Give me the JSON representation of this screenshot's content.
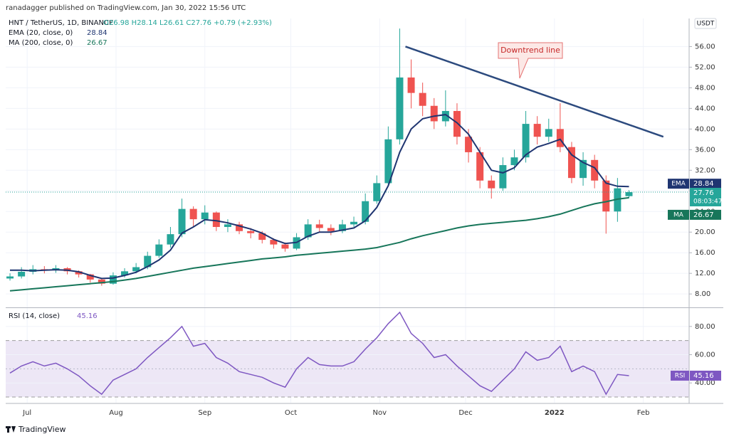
{
  "header": {
    "published": "ranadagger published on TradingView.com, Jan 30, 2022 15:56 UTC"
  },
  "footer": {
    "brand": "TradingView"
  },
  "chart_data": [
    {
      "type": "candlestick",
      "title": "HNT / TetherUS, 1D, BINANCE",
      "ohlc_text": "O26.98 H28.14 L26.61 C27.76 +0.79 (+2.93%)",
      "currency": "USDT",
      "countdown": "08:03:47",
      "up_color": "#26a69a",
      "down_color": "#ef5350",
      "x": [
        -6,
        -2,
        2,
        6,
        10,
        14,
        18,
        22,
        26,
        30,
        34,
        38,
        42,
        46,
        50,
        54,
        58,
        62,
        66,
        70,
        74,
        78,
        82,
        86,
        90,
        94,
        98,
        102,
        106,
        110,
        114,
        118,
        122,
        126,
        130,
        134,
        138,
        142,
        146,
        150,
        154,
        158,
        162,
        166,
        170,
        174,
        178,
        182,
        186,
        190,
        194,
        198,
        202,
        206,
        210
      ],
      "open": [
        11.0,
        11.4,
        12.3,
        12.8,
        12.6,
        13.0,
        12.4,
        11.8,
        10.8,
        10.0,
        11.6,
        12.4,
        13.2,
        15.4,
        17.6,
        19.6,
        24.5,
        22.5,
        23.8,
        21.0,
        21.5,
        20.2,
        19.8,
        18.5,
        17.6,
        16.8,
        19.0,
        21.5,
        20.8,
        20.2,
        21.5,
        22.0,
        26.0,
        29.5,
        38.0,
        50.0,
        47.0,
        44.5,
        41.5,
        43.5,
        38.5,
        35.5,
        30.0,
        28.5,
        33.0,
        34.5,
        41.0,
        38.5,
        40.0,
        36.5,
        30.5,
        34.0,
        30.0,
        24.0,
        26.98
      ],
      "high": [
        12.0,
        13.2,
        13.6,
        13.4,
        13.6,
        13.2,
        12.6,
        11.9,
        11.0,
        12.2,
        13.0,
        14.0,
        16.2,
        18.6,
        21.0,
        26.5,
        25.0,
        25.2,
        24.0,
        22.5,
        22.0,
        20.8,
        20.2,
        18.8,
        18.0,
        19.8,
        22.5,
        22.4,
        21.5,
        22.4,
        23.0,
        27.5,
        31.0,
        40.5,
        59.5,
        53.5,
        49.0,
        46.0,
        47.5,
        45.0,
        40.0,
        36.5,
        31.0,
        34.5,
        36.0,
        43.5,
        42.5,
        42.0,
        45.0,
        37.5,
        35.5,
        35.0,
        31.0,
        30.5,
        28.14
      ],
      "low": [
        10.6,
        11.0,
        11.8,
        12.0,
        12.1,
        11.8,
        11.2,
        10.2,
        9.6,
        9.8,
        11.2,
        12.0,
        12.8,
        15.0,
        17.0,
        19.0,
        21.0,
        21.5,
        20.2,
        20.0,
        19.6,
        18.8,
        17.8,
        16.8,
        16.2,
        16.5,
        18.5,
        20.0,
        19.4,
        19.8,
        21.0,
        21.5,
        25.5,
        29.0,
        37.0,
        44.0,
        42.5,
        40.0,
        40.5,
        37.0,
        33.5,
        28.5,
        26.5,
        28.0,
        32.0,
        33.5,
        37.0,
        37.5,
        35.5,
        29.5,
        29.0,
        28.5,
        19.7,
        22.0,
        26.61
      ],
      "close": [
        11.4,
        12.3,
        12.8,
        12.6,
        13.0,
        12.4,
        11.8,
        10.8,
        10.0,
        11.6,
        12.4,
        13.2,
        15.4,
        17.6,
        19.6,
        24.5,
        22.5,
        23.8,
        21.0,
        21.5,
        20.2,
        19.8,
        18.5,
        17.6,
        16.8,
        19.0,
        21.5,
        20.8,
        20.2,
        21.5,
        22.0,
        26.0,
        29.5,
        38.0,
        50.0,
        47.0,
        44.5,
        41.5,
        43.5,
        38.5,
        35.5,
        30.0,
        28.5,
        33.0,
        34.5,
        41.0,
        38.5,
        40.0,
        36.5,
        30.5,
        34.0,
        30.0,
        24.0,
        28.5,
        27.76
      ],
      "series": [
        {
          "name": "EMA (20, close, 0)",
          "badge": "EMA",
          "color": "#1f3571",
          "values": [
            12.6,
            12.6,
            12.5,
            12.6,
            12.7,
            12.6,
            12.3,
            11.6,
            11.0,
            11.1,
            11.6,
            12.2,
            13.3,
            14.6,
            16.5,
            19.8,
            21.0,
            22.4,
            22.2,
            21.8,
            21.2,
            20.6,
            19.8,
            18.6,
            17.8,
            18.0,
            19.2,
            20.0,
            20.0,
            20.4,
            20.8,
            22.2,
            24.8,
            29.0,
            35.5,
            40.0,
            42.0,
            42.5,
            42.8,
            41.2,
            39.0,
            35.5,
            32.0,
            31.5,
            32.5,
            35.0,
            36.5,
            37.2,
            38.0,
            35.0,
            33.5,
            32.5,
            29.5,
            28.9,
            28.84
          ]
        },
        {
          "name": "MA (200, close, 0)",
          "badge": "MA",
          "color": "#17765a",
          "values": [
            8.6,
            8.8,
            9.0,
            9.2,
            9.4,
            9.6,
            9.8,
            10.0,
            10.2,
            10.4,
            10.7,
            11.0,
            11.4,
            11.8,
            12.2,
            12.6,
            13.0,
            13.3,
            13.6,
            13.9,
            14.2,
            14.5,
            14.8,
            15.0,
            15.2,
            15.5,
            15.7,
            15.9,
            16.1,
            16.3,
            16.5,
            16.7,
            17.0,
            17.5,
            18.0,
            18.7,
            19.3,
            19.8,
            20.3,
            20.8,
            21.2,
            21.5,
            21.7,
            21.9,
            22.1,
            22.3,
            22.6,
            23.0,
            23.5,
            24.2,
            24.9,
            25.5,
            25.9,
            26.4,
            26.67
          ]
        }
      ],
      "trendline": {
        "label": "Downtrend line",
        "color": "#2c4a7e",
        "x": [
          132,
          222
        ],
        "y": [
          56,
          38.5
        ]
      },
      "xlim": [
        -7.5,
        231
      ],
      "xticks": [
        {
          "value": 0,
          "label": "Jul"
        },
        {
          "value": 31,
          "label": "Aug"
        },
        {
          "value": 62,
          "label": "Sep"
        },
        {
          "value": 92,
          "label": "Oct"
        },
        {
          "value": 123,
          "label": "Nov"
        },
        {
          "value": 153,
          "label": "Dec"
        },
        {
          "value": 184,
          "label": "2022"
        },
        {
          "value": 215,
          "label": "Feb"
        }
      ],
      "ylim": [
        5.4,
        60.2
      ],
      "yticks": [
        {
          "value": 8,
          "label": "8.00"
        },
        {
          "value": 12,
          "label": "12.00"
        },
        {
          "value": 16,
          "label": "16.00"
        },
        {
          "value": 20,
          "label": "20.00"
        },
        {
          "value": 24,
          "label": "24.00"
        },
        {
          "value": 28,
          "label": "28.00"
        },
        {
          "value": 32,
          "label": "32.00"
        },
        {
          "value": 36,
          "label": "36.00"
        },
        {
          "value": 40,
          "label": "40.00"
        },
        {
          "value": 44,
          "label": "44.00"
        },
        {
          "value": 48,
          "label": "48.00"
        },
        {
          "value": 52,
          "label": "52.00"
        },
        {
          "value": 56,
          "label": "56.00"
        }
      ],
      "grid": true
    },
    {
      "type": "line",
      "title": "RSI (14, close)",
      "badge": "RSI",
      "series": [
        {
          "name": "RSI (14, close)",
          "color": "#7e57c2",
          "values": [
            47,
            52,
            55,
            52,
            54,
            50,
            45,
            38,
            32,
            42,
            46,
            50,
            58,
            65,
            72,
            80,
            66,
            68,
            58,
            54,
            48,
            46,
            44,
            40,
            37,
            50,
            58,
            53,
            52,
            52,
            55,
            64,
            72,
            82,
            90,
            75,
            68,
            58,
            60,
            52,
            45,
            38,
            34,
            42,
            50,
            62,
            56,
            58,
            66,
            48,
            52,
            48,
            32,
            46,
            45.16
          ]
        }
      ],
      "band": [
        30,
        70
      ],
      "midline": 50,
      "band_color": "#ede7f6",
      "ylim": [
        26,
        93
      ],
      "yticks": [
        {
          "value": 40,
          "label": "40.00"
        },
        {
          "value": 60,
          "label": "60.00"
        },
        {
          "value": 80,
          "label": "80.00"
        }
      ],
      "grid": true
    }
  ]
}
